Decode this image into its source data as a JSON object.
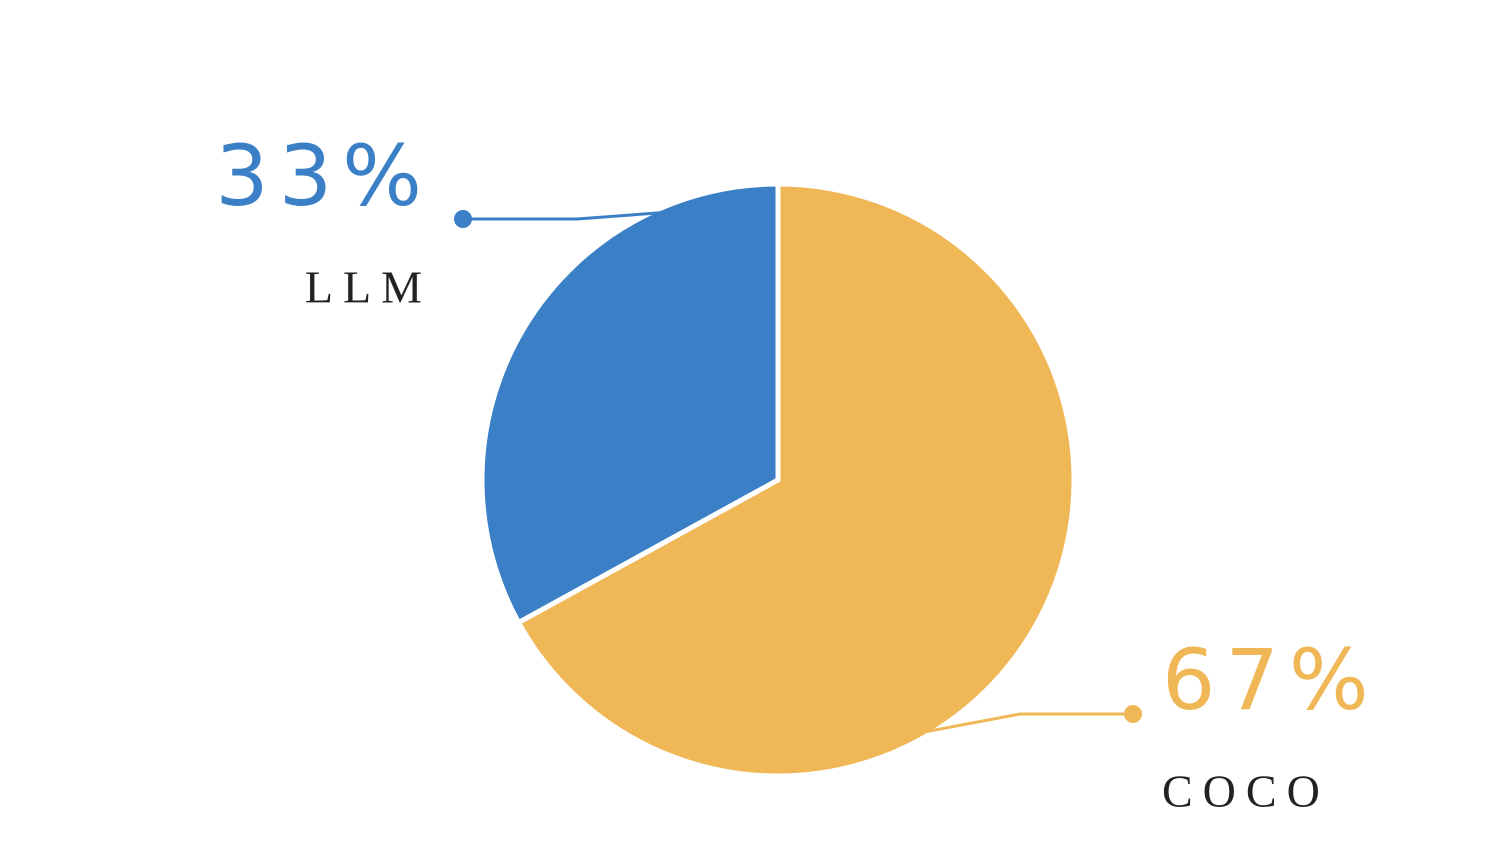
{
  "chart_data": {
    "type": "pie",
    "categories": [
      "LLM",
      "COCO"
    ],
    "values": [
      33,
      67
    ],
    "value_labels": [
      "33%",
      "67%"
    ],
    "colors": [
      "#3b80c6",
      "#f0b757"
    ],
    "start": "top",
    "direction": "counterclockwise"
  }
}
